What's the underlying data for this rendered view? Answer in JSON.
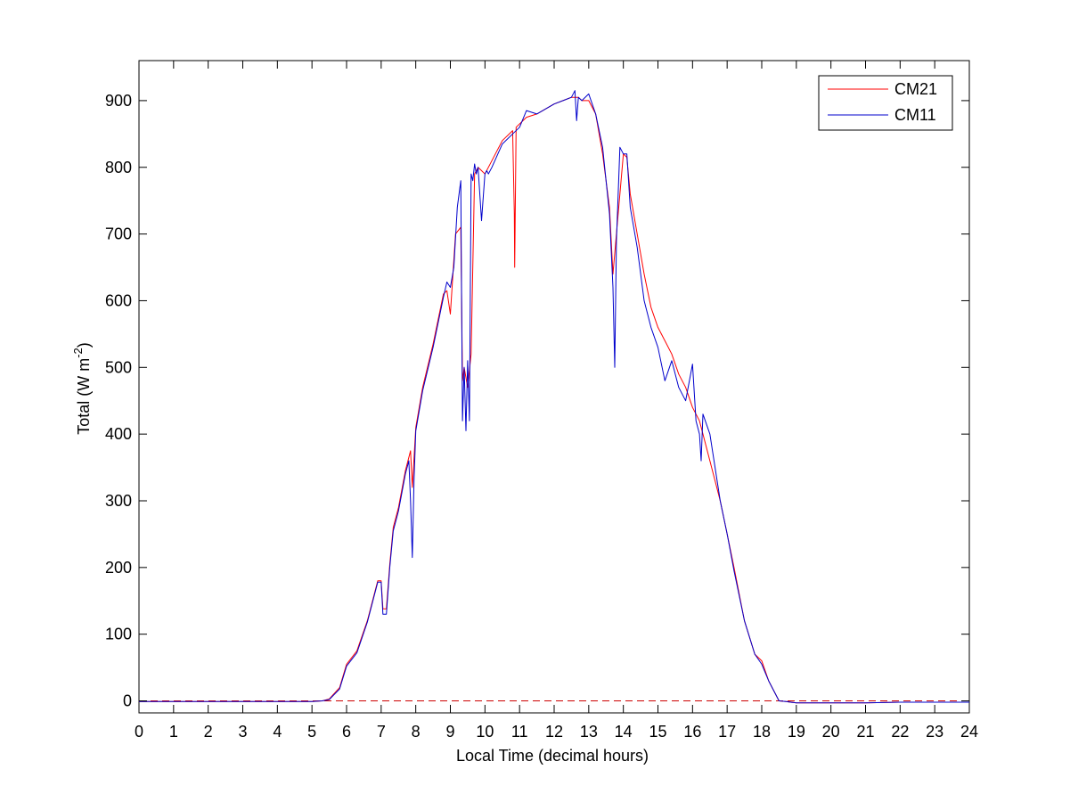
{
  "chart_data": {
    "type": "line",
    "xlabel": "Local Time (decimal hours)",
    "ylabel": {
      "prefix": "Total (W m",
      "superscript": "-2",
      "suffix": ")"
    },
    "xlim": [
      0,
      24
    ],
    "ylim": [
      -18,
      960
    ],
    "x_ticks": [
      0,
      1,
      2,
      3,
      4,
      5,
      6,
      7,
      8,
      9,
      10,
      11,
      12,
      13,
      14,
      15,
      16,
      17,
      18,
      19,
      20,
      21,
      22,
      23,
      24
    ],
    "y_ticks": [
      0,
      100,
      200,
      300,
      400,
      500,
      600,
      700,
      800,
      900
    ],
    "grid": false,
    "legend_position": "top-right",
    "reference_line": {
      "y": 0,
      "style": "dashed",
      "color": "#cc0000"
    },
    "series": [
      {
        "name": "CM21",
        "color": "#ff0000",
        "x": [
          0,
          2,
          4,
          5,
          5.3,
          5.5,
          5.8,
          6.0,
          6.3,
          6.6,
          6.9,
          7.0,
          7.05,
          7.15,
          7.25,
          7.35,
          7.5,
          7.7,
          7.85,
          7.9,
          8.0,
          8.2,
          8.5,
          8.8,
          8.9,
          9.0,
          9.15,
          9.3,
          9.35,
          9.4,
          9.5,
          9.6,
          9.7,
          9.8,
          9.9,
          10.0,
          10.2,
          10.5,
          10.8,
          10.85,
          10.86,
          10.9,
          11.2,
          11.5,
          12.0,
          12.5,
          12.7,
          12.8,
          13.0,
          13.2,
          13.4,
          13.6,
          13.7,
          13.8,
          13.9,
          14.0,
          14.1,
          14.2,
          14.4,
          14.6,
          14.8,
          15.0,
          15.2,
          15.4,
          15.6,
          15.8,
          16.0,
          16.2,
          16.3,
          16.5,
          16.8,
          17.0,
          17.2,
          17.5,
          17.8,
          18.0,
          18.2,
          18.5,
          18.7,
          19,
          20,
          21,
          22,
          23,
          24
        ],
        "y": [
          -1,
          -1,
          -1,
          -1,
          0,
          3,
          20,
          55,
          75,
          120,
          180,
          180,
          138,
          138,
          205,
          260,
          290,
          345,
          375,
          320,
          410,
          470,
          535,
          610,
          615,
          580,
          700,
          710,
          480,
          500,
          470,
          520,
          790,
          800,
          795,
          790,
          810,
          840,
          855,
          730,
          650,
          860,
          875,
          880,
          895,
          905,
          905,
          900,
          900,
          880,
          820,
          740,
          640,
          700,
          760,
          820,
          815,
          760,
          700,
          640,
          590,
          560,
          540,
          520,
          490,
          470,
          440,
          420,
          400,
          360,
          300,
          250,
          200,
          120,
          70,
          60,
          30,
          0,
          -1,
          -3,
          -3,
          -3,
          -2,
          -2,
          -2
        ]
      },
      {
        "name": "CM11",
        "color": "#0000cc",
        "x": [
          0,
          2,
          4,
          5,
          5.3,
          5.5,
          5.8,
          6.0,
          6.3,
          6.6,
          6.9,
          7.0,
          7.05,
          7.15,
          7.25,
          7.35,
          7.5,
          7.7,
          7.8,
          7.85,
          7.9,
          7.95,
          8.0,
          8.2,
          8.5,
          8.8,
          8.9,
          9.0,
          9.1,
          9.2,
          9.3,
          9.35,
          9.4,
          9.45,
          9.5,
          9.55,
          9.6,
          9.65,
          9.7,
          9.75,
          9.8,
          9.9,
          10.0,
          10.05,
          10.1,
          10.2,
          10.5,
          10.8,
          11.0,
          11.2,
          11.5,
          12.0,
          12.5,
          12.6,
          12.65,
          12.7,
          12.8,
          13.0,
          13.2,
          13.4,
          13.6,
          13.7,
          13.75,
          13.8,
          13.9,
          14.0,
          14.1,
          14.2,
          14.4,
          14.6,
          14.8,
          15.0,
          15.2,
          15.4,
          15.6,
          15.8,
          16.0,
          16.1,
          16.2,
          16.25,
          16.3,
          16.5,
          16.8,
          17.0,
          17.2,
          17.5,
          17.8,
          18.0,
          18.2,
          18.5,
          18.7,
          19,
          20,
          21,
          22,
          23,
          24
        ],
        "y": [
          -1,
          -1,
          -1,
          -1,
          0,
          2,
          18,
          52,
          72,
          118,
          178,
          178,
          130,
          130,
          200,
          255,
          285,
          340,
          360,
          300,
          215,
          330,
          405,
          465,
          530,
          605,
          628,
          620,
          650,
          740,
          780,
          420,
          500,
          405,
          510,
          420,
          790,
          780,
          805,
          790,
          800,
          720,
          790,
          795,
          790,
          800,
          835,
          850,
          860,
          885,
          880,
          895,
          905,
          915,
          870,
          905,
          900,
          910,
          880,
          830,
          730,
          620,
          500,
          690,
          830,
          820,
          820,
          740,
          680,
          600,
          560,
          530,
          480,
          510,
          470,
          450,
          505,
          420,
          400,
          360,
          430,
          400,
          300,
          250,
          195,
          120,
          70,
          55,
          30,
          0,
          -1,
          -3,
          -3,
          -3,
          -2,
          -2,
          -2
        ]
      }
    ]
  }
}
